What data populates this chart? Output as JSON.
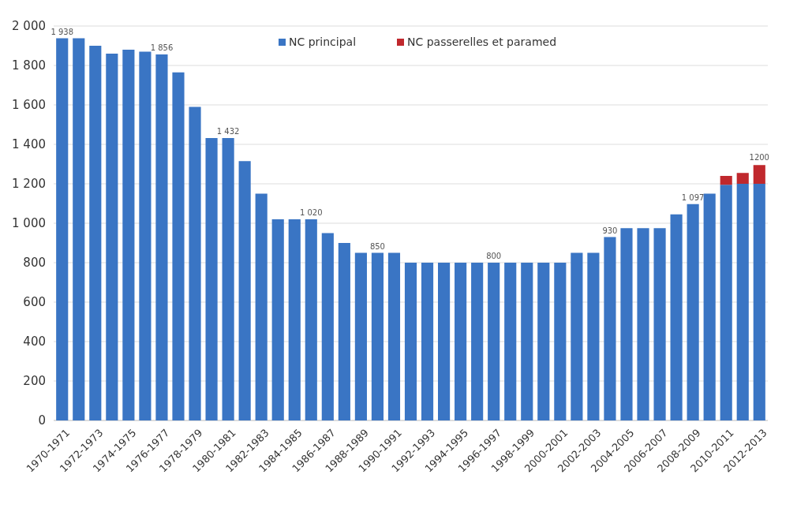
{
  "chart_data": {
    "type": "bar",
    "stacked": true,
    "categories": [
      "1970-1971",
      null,
      "1972-1973",
      null,
      "1974-1975",
      null,
      "1976-1977",
      null,
      "1978-1979",
      null,
      "1980-1981",
      null,
      "1982-1983",
      null,
      "1984-1985",
      null,
      "1986-1987",
      null,
      "1988-1989",
      null,
      "1990-1991",
      null,
      "1992-1993",
      null,
      "1994-1995",
      null,
      "1996-1997",
      null,
      "1998-1999",
      null,
      "2000-2001",
      null,
      "2002-2003",
      null,
      "2004-2005",
      null,
      "2006-2007",
      null,
      "2008-2009",
      null,
      "2010-2011",
      null,
      "2012-2013"
    ],
    "series": [
      {
        "name": "NC principal",
        "color": "#3a75c4",
        "values": [
          1938,
          1938,
          1900,
          1860,
          1880,
          1870,
          1856,
          1765,
          1590,
          1432,
          1432,
          1315,
          1150,
          1020,
          1020,
          1020,
          950,
          900,
          850,
          850,
          850,
          800,
          800,
          800,
          800,
          800,
          800,
          800,
          800,
          800,
          800,
          850,
          850,
          930,
          975,
          975,
          975,
          1045,
          1097,
          1150,
          1195,
          1200,
          1200
        ],
        "value_labels": [
          "1 938",
          null,
          null,
          null,
          null,
          null,
          "1 856",
          null,
          null,
          null,
          "1 432",
          null,
          null,
          null,
          null,
          "1 020",
          null,
          null,
          null,
          "850",
          null,
          null,
          null,
          null,
          null,
          null,
          "800",
          null,
          null,
          null,
          null,
          null,
          null,
          "930",
          null,
          null,
          null,
          null,
          "1 097",
          null,
          null,
          null,
          null
        ]
      },
      {
        "name": "NC passerelles et paramed",
        "color": "#c0282d",
        "values": [
          0,
          0,
          0,
          0,
          0,
          0,
          0,
          0,
          0,
          0,
          0,
          0,
          0,
          0,
          0,
          0,
          0,
          0,
          0,
          0,
          0,
          0,
          0,
          0,
          0,
          0,
          0,
          0,
          0,
          0,
          0,
          0,
          0,
          0,
          0,
          0,
          0,
          0,
          0,
          0,
          45,
          55,
          95
        ]
      }
    ],
    "ylim": [
      0,
      2000
    ],
    "yticks": [
      {
        "value": 0,
        "label": "0"
      },
      {
        "value": 200,
        "label": "200"
      },
      {
        "value": 400,
        "label": "400"
      },
      {
        "value": 600,
        "label": "600"
      },
      {
        "value": 800,
        "label": "800"
      },
      {
        "value": 1000,
        "label": "1 000"
      },
      {
        "value": 1200,
        "label": "1 200"
      },
      {
        "value": 1400,
        "label": "1 400"
      },
      {
        "value": 1600,
        "label": "1 600"
      },
      {
        "value": 1800,
        "label": "1 800"
      },
      {
        "value": 2000,
        "label": "2 000"
      }
    ],
    "annotations": [
      "1200"
    ],
    "grid": "y",
    "legend": "top"
  }
}
